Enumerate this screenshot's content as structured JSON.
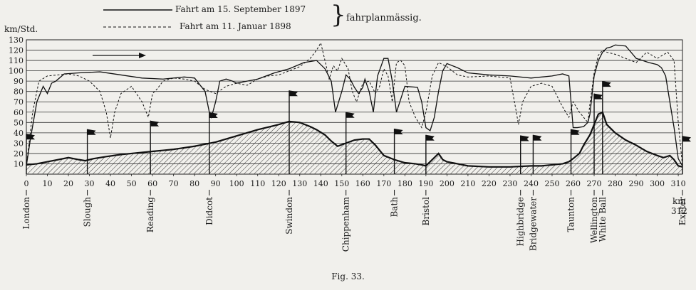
{
  "legend": {
    "solid_label": "Fahrt am 15. September 1897",
    "dashed_label": "Fahrt am 11. Januar 1898",
    "group_label": "fahrplanmässig."
  },
  "caption": "Fig. 33.",
  "chart_data": {
    "type": "line",
    "ylabel": "km/Std.",
    "xlabel": "km",
    "xlim": [
      0,
      312
    ],
    "ylim": [
      0,
      130
    ],
    "y_ticks": [
      10,
      20,
      30,
      40,
      50,
      60,
      70,
      80,
      90,
      100,
      110,
      120,
      130
    ],
    "x_ticks": [
      0,
      10,
      20,
      30,
      40,
      50,
      60,
      70,
      80,
      90,
      100,
      110,
      120,
      130,
      140,
      150,
      160,
      170,
      180,
      190,
      200,
      210,
      220,
      230,
      240,
      250,
      260,
      270,
      280,
      290,
      300,
      310
    ],
    "x_end_label": "312",
    "grid": true,
    "direction_arrow": true,
    "series": [
      {
        "name": "Fahrt am 15. September 1897",
        "style": "solid",
        "x": [
          0,
          2,
          5,
          8,
          10,
          12,
          14,
          18,
          25,
          35,
          45,
          55,
          65,
          75,
          80,
          85,
          87,
          88,
          90,
          92,
          95,
          98,
          100,
          105,
          110,
          118,
          125,
          132,
          138,
          142,
          145,
          147,
          150,
          152,
          154,
          156,
          158,
          160,
          161,
          163,
          165,
          167,
          170,
          172,
          174,
          176,
          180,
          186,
          188,
          190,
          192,
          194,
          196,
          198,
          200,
          205,
          210,
          220,
          230,
          240,
          250,
          255,
          258,
          260,
          262,
          265,
          267,
          268,
          270,
          272,
          274,
          276,
          278,
          280,
          285,
          290,
          296,
          300,
          302,
          304,
          306,
          308,
          310,
          312
        ],
        "y": [
          8,
          35,
          70,
          85,
          78,
          88,
          90,
          97,
          98,
          99,
          96,
          93,
          92,
          94,
          93,
          80,
          60,
          55,
          70,
          90,
          92,
          90,
          88,
          90,
          92,
          98,
          102,
          108,
          110,
          102,
          90,
          60,
          80,
          96,
          92,
          84,
          78,
          84,
          92,
          80,
          60,
          95,
          112,
          112,
          90,
          60,
          85,
          84,
          70,
          45,
          42,
          55,
          80,
          100,
          107,
          103,
          98,
          96,
          95,
          93,
          95,
          97,
          95,
          45,
          45,
          46,
          50,
          58,
          95,
          110,
          118,
          122,
          123,
          125,
          124,
          112,
          108,
          106,
          103,
          95,
          70,
          45,
          15,
          8
        ]
      },
      {
        "name": "Fahrt am 11. Januar 1898",
        "style": "dashed",
        "x": [
          0,
          3,
          6,
          10,
          15,
          20,
          25,
          30,
          35,
          38,
          40,
          42,
          45,
          50,
          55,
          58,
          60,
          62,
          65,
          70,
          75,
          80,
          85,
          90,
          95,
          100,
          105,
          110,
          115,
          120,
          125,
          130,
          135,
          138,
          140,
          142,
          144,
          146,
          148,
          150,
          153,
          155,
          157,
          160,
          163,
          166,
          168,
          170,
          172,
          174,
          176,
          178,
          180,
          182,
          185,
          188,
          190,
          193,
          196,
          200,
          205,
          210,
          220,
          230,
          233,
          234,
          236,
          240,
          245,
          250,
          255,
          258,
          260,
          263,
          265,
          267,
          268,
          270,
          272,
          274,
          276,
          280,
          285,
          290,
          295,
          300,
          305,
          308,
          310,
          312
        ],
        "y": [
          8,
          60,
          90,
          95,
          96,
          97,
          95,
          90,
          80,
          60,
          35,
          60,
          78,
          85,
          70,
          55,
          78,
          82,
          90,
          93,
          92,
          90,
          82,
          78,
          85,
          88,
          86,
          92,
          95,
          96,
          100,
          104,
          112,
          120,
          127,
          110,
          92,
          105,
          100,
          112,
          102,
          80,
          70,
          88,
          90,
          78,
          85,
          102,
          95,
          70,
          108,
          110,
          105,
          70,
          55,
          45,
          60,
          95,
          108,
          104,
          96,
          94,
          95,
          93,
          60,
          48,
          70,
          85,
          88,
          85,
          65,
          55,
          70,
          60,
          55,
          50,
          68,
          98,
          115,
          120,
          118,
          116,
          112,
          108,
          118,
          112,
          118,
          110,
          50,
          8
        ]
      },
      {
        "name": "profile",
        "style": "hatched-profile",
        "x": [
          0,
          5,
          10,
          15,
          20,
          25,
          28,
          32,
          38,
          45,
          50,
          55,
          60,
          65,
          70,
          80,
          90,
          100,
          110,
          120,
          125,
          130,
          135,
          138,
          142,
          145,
          148,
          152,
          156,
          160,
          163,
          166,
          170,
          175,
          180,
          185,
          188,
          190,
          192,
          194,
          196,
          198,
          200,
          205,
          210,
          220,
          230,
          240,
          245,
          250,
          255,
          258,
          260,
          263,
          265,
          268,
          270,
          272,
          274,
          276,
          280,
          285,
          290,
          295,
          300,
          303,
          306,
          308,
          310,
          312
        ],
        "y": [
          9,
          10,
          12,
          14,
          16,
          14,
          13,
          15,
          17,
          19,
          20,
          21,
          22,
          23,
          24,
          27,
          31,
          37,
          43,
          48,
          51,
          50,
          46,
          43,
          38,
          32,
          27,
          30,
          33,
          34,
          34,
          28,
          18,
          14,
          11,
          10,
          9,
          8,
          12,
          16,
          20,
          14,
          12,
          10,
          8,
          7,
          7,
          8,
          8,
          9,
          10,
          12,
          15,
          20,
          28,
          38,
          48,
          58,
          60,
          48,
          40,
          33,
          28,
          22,
          18,
          16,
          18,
          14,
          8,
          7
        ]
      }
    ],
    "stations": [
      {
        "name": "London",
        "km": 0
      },
      {
        "name": "Slough",
        "km": 29
      },
      {
        "name": "Reading",
        "km": 59
      },
      {
        "name": "Didcot",
        "km": 87
      },
      {
        "name": "Swindon",
        "km": 125
      },
      {
        "name": "Chippenham",
        "km": 152
      },
      {
        "name": "Bath",
        "km": 175
      },
      {
        "name": "Bristol",
        "km": 190
      },
      {
        "name": "Highbridge",
        "km": 235
      },
      {
        "name": "Bridgewater",
        "km": 241
      },
      {
        "name": "Taunton",
        "km": 259
      },
      {
        "name": "Wellington",
        "km": 270
      },
      {
        "name": "White Ball",
        "km": 274
      },
      {
        "name": "Exeter",
        "km": 312
      }
    ]
  }
}
